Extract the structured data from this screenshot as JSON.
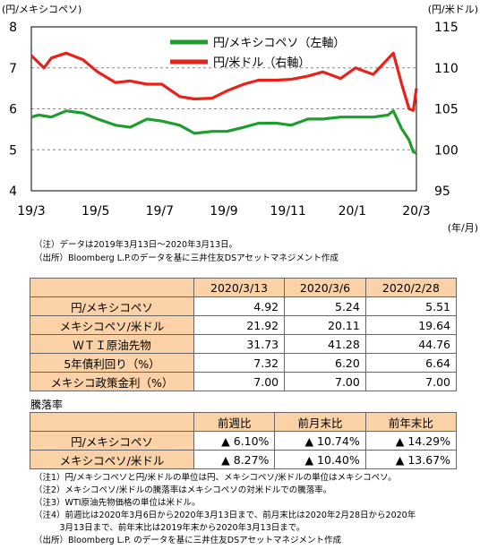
{
  "chart_data": {
    "type": "line",
    "left_axis_unit": "(円/メキシコペソ)",
    "right_axis_unit": "(円/米ドル)",
    "x_unit": "(年/月)",
    "left_ylim": [
      4,
      8
    ],
    "right_ylim": [
      95,
      115
    ],
    "left_ticks": [
      "4",
      "5",
      "6",
      "7",
      "8"
    ],
    "right_ticks": [
      "95",
      "100",
      "105",
      "110",
      "115"
    ],
    "x_ticks": [
      "19/3",
      "19/5",
      "19/7",
      "19/9",
      "19/11",
      "20/1",
      "20/3"
    ],
    "x_range": [
      "2019-03-13",
      "2020-03-13"
    ],
    "legend": [
      {
        "label": "円/メキシコペソ（左軸）",
        "color": "#1e9e2f"
      },
      {
        "label": "円/米ドル（右軸）",
        "color": "#e8221b"
      }
    ],
    "series": [
      {
        "name": "円/メキシコペソ（左軸）",
        "axis": "left",
        "color": "#1e9e2f",
        "x": [
          "2019-03-13",
          "2019-03-20",
          "2019-04-01",
          "2019-04-15",
          "2019-05-01",
          "2019-05-15",
          "2019-06-01",
          "2019-06-15",
          "2019-07-01",
          "2019-07-15",
          "2019-08-01",
          "2019-08-15",
          "2019-09-01",
          "2019-09-15",
          "2019-10-01",
          "2019-10-15",
          "2019-11-01",
          "2019-11-15",
          "2019-12-01",
          "2019-12-15",
          "2020-01-01",
          "2020-01-15",
          "2020-02-01",
          "2020-02-15",
          "2020-02-20",
          "2020-02-28",
          "2020-03-06",
          "2020-03-10",
          "2020-03-13"
        ],
        "values": [
          5.8,
          5.85,
          5.8,
          5.95,
          5.9,
          5.75,
          5.6,
          5.55,
          5.75,
          5.7,
          5.6,
          5.4,
          5.45,
          5.45,
          5.55,
          5.65,
          5.65,
          5.6,
          5.75,
          5.75,
          5.8,
          5.8,
          5.8,
          5.85,
          5.95,
          5.51,
          5.24,
          4.95,
          4.92
        ]
      },
      {
        "name": "円/米ドル（右軸）",
        "axis": "right",
        "color": "#e8221b",
        "x": [
          "2019-03-13",
          "2019-03-25",
          "2019-04-01",
          "2019-04-15",
          "2019-05-01",
          "2019-05-15",
          "2019-06-01",
          "2019-06-15",
          "2019-07-01",
          "2019-07-15",
          "2019-08-01",
          "2019-08-15",
          "2019-09-01",
          "2019-09-15",
          "2019-10-01",
          "2019-10-15",
          "2019-11-01",
          "2019-11-15",
          "2019-12-01",
          "2019-12-15",
          "2020-01-01",
          "2020-01-15",
          "2020-02-01",
          "2020-02-20",
          "2020-02-28",
          "2020-03-06",
          "2020-03-10",
          "2020-03-13"
        ],
        "values": [
          111.5,
          110.0,
          111.2,
          111.8,
          111.0,
          109.5,
          108.2,
          108.4,
          108.0,
          108.0,
          106.5,
          106.2,
          106.3,
          107.2,
          108.0,
          108.5,
          108.5,
          108.6,
          109.0,
          109.5,
          108.7,
          110.0,
          109.2,
          111.8,
          108.0,
          105.0,
          104.8,
          107.5
        ]
      }
    ]
  },
  "notes_top": [
    "（注）データは2019年3月13日～2020年3月13日。",
    "（出所）Bloomberg L.P.のデータを基に三井住友DSアセットマネジメント作成"
  ],
  "table1": {
    "headers": [
      "2020/3/13",
      "2020/3/6",
      "2020/2/28"
    ],
    "rows": [
      {
        "label": "円/メキシコペソ",
        "values": [
          "4.92",
          "5.24",
          "5.51"
        ]
      },
      {
        "label": "メキシコペソ/米ドル",
        "values": [
          "21.92",
          "20.11",
          "19.64"
        ]
      },
      {
        "label": "ＷＴＩ原油先物",
        "values": [
          "31.73",
          "41.28",
          "44.76"
        ]
      },
      {
        "label": "5年債利回り（%）",
        "values": [
          "7.32",
          "6.20",
          "6.64"
        ]
      },
      {
        "label": "メキシコ政策金利（%）",
        "values": [
          "7.00",
          "7.00",
          "7.00"
        ]
      }
    ]
  },
  "table2": {
    "title": "騰落率",
    "headers": [
      "前週比",
      "前月末比",
      "前年末比"
    ],
    "rows": [
      {
        "label": "円/メキシコペソ",
        "values": [
          "▲ 6.10%",
          "▲ 10.74%",
          "▲ 14.29%"
        ]
      },
      {
        "label": "メキシコペソ/米ドル",
        "values": [
          "▲ 8.27%",
          "▲ 10.40%",
          "▲ 13.67%"
        ]
      }
    ]
  },
  "notes_bottom": [
    "（注1）円/メキシコペソと円/米ドルの単位は円、メキシコペソ/米ドルの単位はメキシコペソ。",
    "（注2）メキシコペソ/米ドルの騰落率はメキシコペソの対米ドルでの騰落率。",
    "（注3）WTI原油先物価格の単位は米ドル。",
    "（注4）前週比は2020年3月6日から2020年3月13日まで、前月末比は2020年2月28日から2020年",
    "　　　3月13日まで、前年末比は2019年末から2020年3月13日まで。",
    "（出所）Bloomberg L.P. のデータを基に三井住友DSアセットマネジメント作成"
  ]
}
